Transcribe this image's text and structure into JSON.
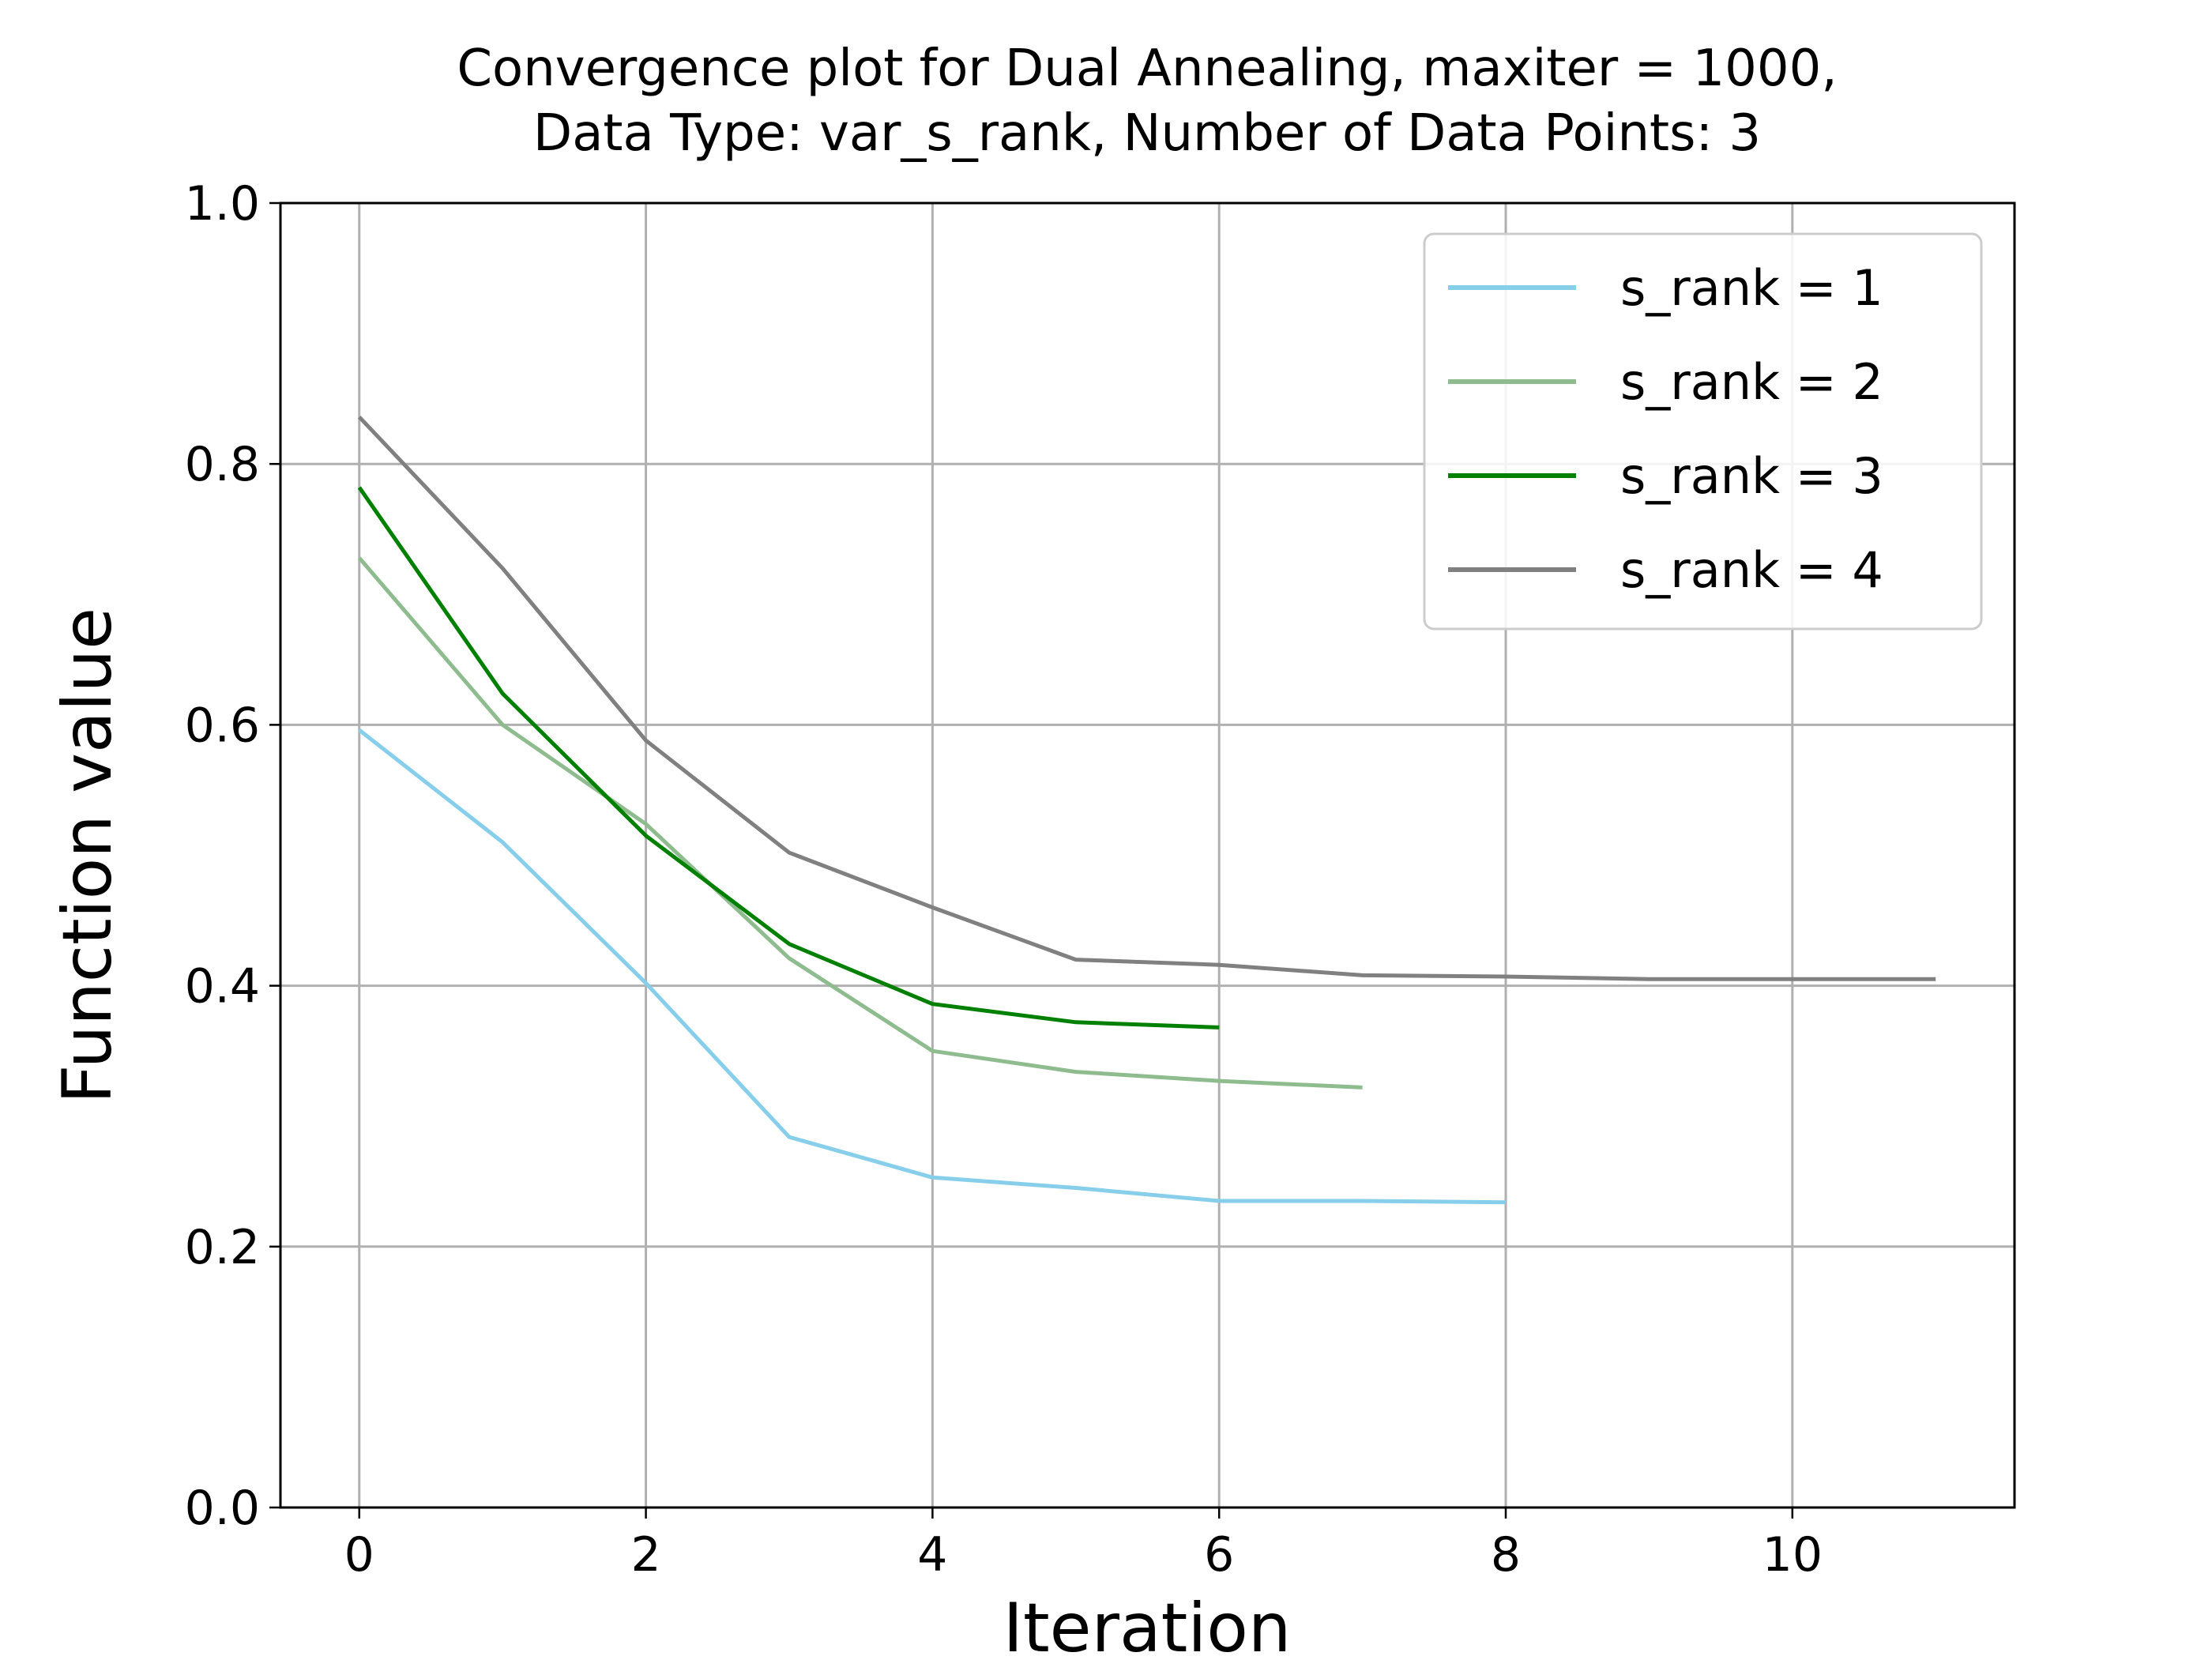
{
  "chart_data": {
    "type": "line",
    "title_lines": [
      "Convergence plot for Dual Annealing, maxiter = 1000,",
      "Data Type: var_s_rank, Number of Data Points: 3"
    ],
    "xlabel": "Iteration",
    "ylabel": "Function value",
    "xlim": [
      -0.55,
      11.55
    ],
    "ylim": [
      0.0,
      1.0
    ],
    "xticks": [
      0,
      2,
      4,
      6,
      8,
      10
    ],
    "xtick_labels": [
      "0",
      "2",
      "4",
      "6",
      "8",
      "10"
    ],
    "yticks": [
      0.0,
      0.2,
      0.4,
      0.6,
      0.8,
      1.0
    ],
    "ytick_labels": [
      "0.0",
      "0.2",
      "0.4",
      "0.6",
      "0.8",
      "1.0"
    ],
    "grid": true,
    "legend_position": "top-right",
    "series": [
      {
        "name": "s_rank = 1",
        "color": "#87ceeb",
        "x": [
          0,
          1,
          2,
          3,
          4,
          5,
          6,
          7,
          8
        ],
        "y": [
          0.596,
          0.51,
          0.402,
          0.284,
          0.253,
          0.245,
          0.235,
          0.235,
          0.234
        ]
      },
      {
        "name": "s_rank = 2",
        "color": "#8fbc8f",
        "x": [
          0,
          1,
          2,
          3,
          4,
          5,
          6,
          7
        ],
        "y": [
          0.728,
          0.6,
          0.524,
          0.421,
          0.35,
          0.334,
          0.327,
          0.322
        ]
      },
      {
        "name": "s_rank = 3",
        "color": "#008000",
        "x": [
          0,
          1,
          2,
          3,
          4,
          5,
          6
        ],
        "y": [
          0.782,
          0.624,
          0.515,
          0.432,
          0.386,
          0.372,
          0.368
        ]
      },
      {
        "name": "s_rank = 4",
        "color": "#808080",
        "x": [
          0,
          1,
          2,
          3,
          4,
          5,
          6,
          7,
          8,
          9,
          10,
          11
        ],
        "y": [
          0.836,
          0.72,
          0.588,
          0.502,
          0.46,
          0.42,
          0.416,
          0.408,
          0.407,
          0.405,
          0.405,
          0.405
        ]
      }
    ]
  }
}
